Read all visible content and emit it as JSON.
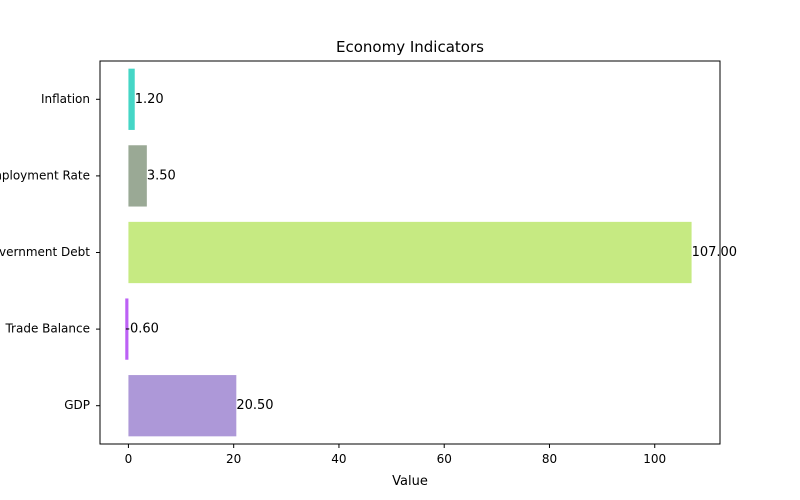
{
  "chart_data": {
    "type": "bar",
    "orientation": "horizontal",
    "title": "Economy Indicators",
    "xlabel": "Value",
    "ylabel": "",
    "categories": [
      "GDP",
      "Trade Balance",
      "Government Debt",
      "Unemployment Rate",
      "Inflation"
    ],
    "values": [
      20.5,
      -0.6,
      107.0,
      3.5,
      1.2
    ],
    "data_labels": [
      "20.50",
      "-0.60",
      "107.00",
      "3.50",
      "1.20"
    ],
    "colors": [
      "#ad98d8",
      "#bc61f5",
      "#c6ea82",
      "#9aa995",
      "#45d6c6"
    ],
    "xlim": [
      -5.4,
      112.4
    ],
    "xticks": [
      0,
      20,
      40,
      60,
      80,
      100
    ],
    "grid": false,
    "legend": "none"
  }
}
